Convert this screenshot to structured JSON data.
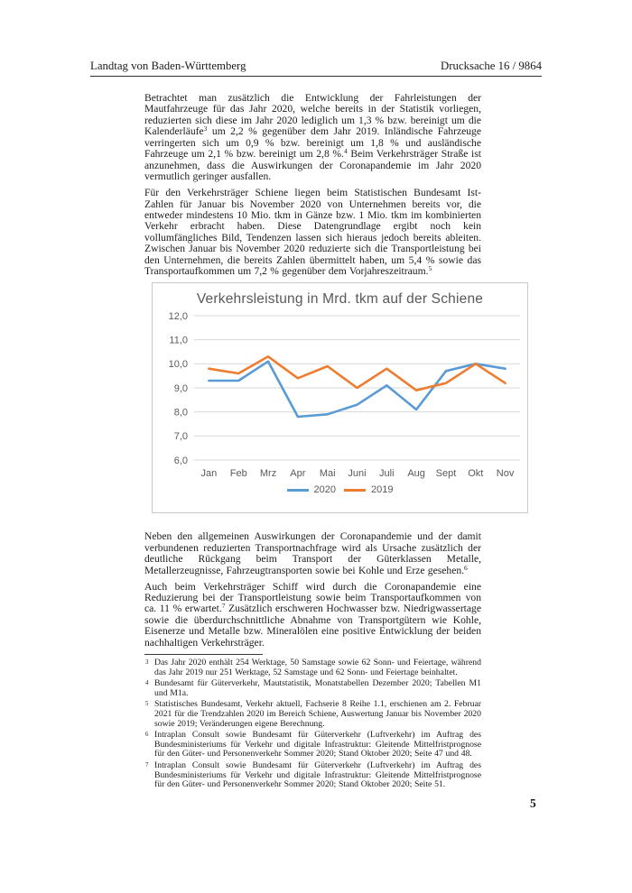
{
  "header": {
    "left": "Landtag von Baden-Württemberg",
    "right": "Drucksache 16 / 9864"
  },
  "page_number": "5",
  "paragraphs_top": [
    {
      "segments": [
        {
          "t": "Betrachtet man zusätzlich die Entwicklung der Fahrleistungen der Mautfahrzeuge für das Jahr 2020, welche bereits in der Statistik vorliegen, reduzierten sich diese im Jahr 2020 lediglich um 1,3 % bzw. bereinigt um die Kalenderläufe"
        },
        {
          "sup": "3"
        },
        {
          "t": " um 2,2 % gegenüber dem Jahr 2019. Inländische Fahrzeuge verringerten sich um 0,9 % bzw. bereinigt um 1,8 % und ausländische Fahrzeuge um 2,1 % bzw. bereinigt um 2,8 %."
        },
        {
          "sup": "4"
        },
        {
          "t": " Beim Verkehrsträger Straße ist anzunehmen, dass die Auswirkungen der Coronapandemie im Jahr 2020 vermutlich geringer ausfallen."
        }
      ]
    },
    {
      "segments": [
        {
          "t": "Für den Verkehrsträger Schiene liegen beim Statistischen Bundesamt Ist-Zahlen für Januar bis November 2020 von Unternehmen bereits vor, die entweder mindestens 10 Mio. tkm in Gänze bzw. 1 Mio. tkm im kombinierten Verkehr erbracht haben. Diese Datengrundlage ergibt noch kein vollumfängliches Bild, Tendenzen lassen sich hieraus jedoch bereits ableiten. Zwischen Januar bis November 2020 reduzierte sich die Transportleistung bei den Unternehmen, die bereits Zahlen übermittelt haben, um 5,4 % sowie das Transportaufkommen um 7,2 % gegenüber dem Vorjahreszeitraum."
        },
        {
          "sup": "5"
        }
      ]
    }
  ],
  "chart_data": {
    "type": "line",
    "title": "Verkehrsleistung in Mrd. tkm auf der Schiene",
    "categories": [
      "Jan",
      "Feb",
      "Mrz",
      "Apr",
      "Mai",
      "Juni",
      "Juli",
      "Aug",
      "Sept",
      "Okt",
      "Nov"
    ],
    "series": [
      {
        "name": "2020",
        "color": "#5B9BD5",
        "values": [
          9.3,
          9.3,
          10.1,
          7.8,
          7.9,
          8.3,
          9.1,
          8.1,
          9.7,
          10.0,
          9.8
        ]
      },
      {
        "name": "2019",
        "color": "#ED7D31",
        "values": [
          9.8,
          9.6,
          10.3,
          9.4,
          9.9,
          9.0,
          9.8,
          8.9,
          9.2,
          10.0,
          9.2
        ]
      }
    ],
    "ylim": [
      6.0,
      12.0
    ],
    "ytick_step": 1.0,
    "ytick_labels": [
      "6,0",
      "7,0",
      "8,0",
      "9,0",
      "10,0",
      "11,0",
      "12,0"
    ],
    "grid": true,
    "legend_position": "bottom",
    "gridline_color": "#d9d9d9",
    "text_color": "#595959"
  },
  "paragraphs_bottom": [
    {
      "segments": [
        {
          "t": "Neben den allgemeinen Auswirkungen der Coronapandemie und der damit verbundenen reduzierten Transportnachfrage wird als Ursache zusätzlich der deutliche Rückgang beim Transport der Güterklassen Metalle, Metallerzeugnisse, Fahrzeugtransporten sowie bei Kohle und Erze gesehen."
        },
        {
          "sup": "6"
        }
      ]
    },
    {
      "segments": [
        {
          "t": "Auch beim Verkehrsträger Schiff wird durch die Coronapandemie eine Reduzierung bei der Transportleistung sowie beim Transportaufkommen von ca. 11 % erwartet."
        },
        {
          "sup": "7"
        },
        {
          "t": " Zusätzlich erschweren Hochwasser bzw. Niedrigwassertage sowie die überdurchschnittliche Abnahme von Transportgütern wie Kohle, Eisenerze und Metalle bzw. Mineralölen eine positive Entwicklung der beiden nachhaltigen Verkehrsträger."
        }
      ]
    }
  ],
  "footnotes": {
    "items": [
      {
        "num": "3",
        "text": "Das Jahr 2020 enthält 254 Werktage, 50 Samstage sowie 62 Sonn- und Feiertage, während das Jahr 2019 nur 251 Werktage, 52 Samstage und 62 Sonn- und Feiertage beinhaltet."
      },
      {
        "num": "4",
        "text": "Bundesamt für Güterverkehr, Mautstatistik, Monatstabellen Dezember 2020; Tabellen M1 und M1a."
      },
      {
        "num": "5",
        "text": "Statistisches Bundesamt, Verkehr aktuell, Fachserie 8 Reihe 1.1, erschienen am 2. Februar 2021 für die Trendzahlen 2020 im Bereich Schiene, Auswertung Januar bis November 2020 sowie 2019; Veränderungen eigene Berechnung."
      },
      {
        "num": "6",
        "text": "Intraplan Consult sowie Bundesamt für Güterverkehr (Luftverkehr) im Auftrag des Bundesministeriums für Verkehr und digitale Infrastruktur: Gleitende Mittelfristprognose für den Güter- und Personenverkehr Sommer 2020; Stand Oktober 2020; Seite 47 und 48."
      },
      {
        "num": "7",
        "text": "Intraplan Consult sowie Bundesamt für Güterverkehr (Luftverkehr) im Auftrag des Bundesministeriums für Verkehr und digitale Infrastruktur: Gleitende Mittelfristprognose für den Güter- und Personenverkehr Sommer 2020; Stand Oktober 2020; Seite 51."
      }
    ]
  }
}
